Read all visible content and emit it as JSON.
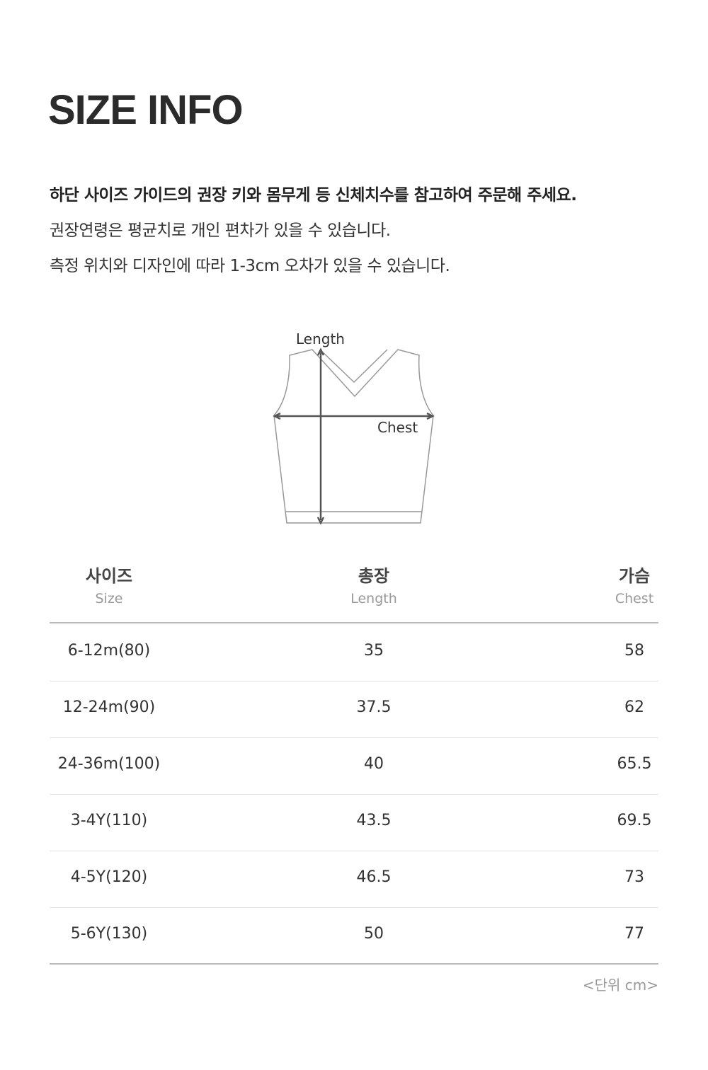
{
  "title": "SIZE INFO",
  "description": [
    "하단 사이즈 가이드의 권장 키와 몸무게 등 신체치수를 참고하여 주문해 주세요.",
    "권장연령은 평균치로 개인 편차가 있을 수 있습니다.",
    "측정 위치와 디자인에 따라 1-3cm 오차가 있을 수 있습니다."
  ],
  "diagram": {
    "length_label": "Length",
    "chest_label": "Chest"
  },
  "table": {
    "headers": [
      {
        "ko": "사이즈",
        "en": "Size"
      },
      {
        "ko": "총장",
        "en": "Length"
      },
      {
        "ko": "가슴",
        "en": "Chest"
      }
    ],
    "rows": [
      [
        "6-12m(80)",
        "35",
        "58"
      ],
      [
        "12-24m(90)",
        "37.5",
        "62"
      ],
      [
        "24-36m(100)",
        "40",
        "65.5"
      ],
      [
        "3-4Y(110)",
        "43.5",
        "69.5"
      ],
      [
        "4-5Y(120)",
        "46.5",
        "73"
      ],
      [
        "5-6Y(130)",
        "50",
        "77"
      ]
    ]
  },
  "unit_note": "<단위 cm>"
}
